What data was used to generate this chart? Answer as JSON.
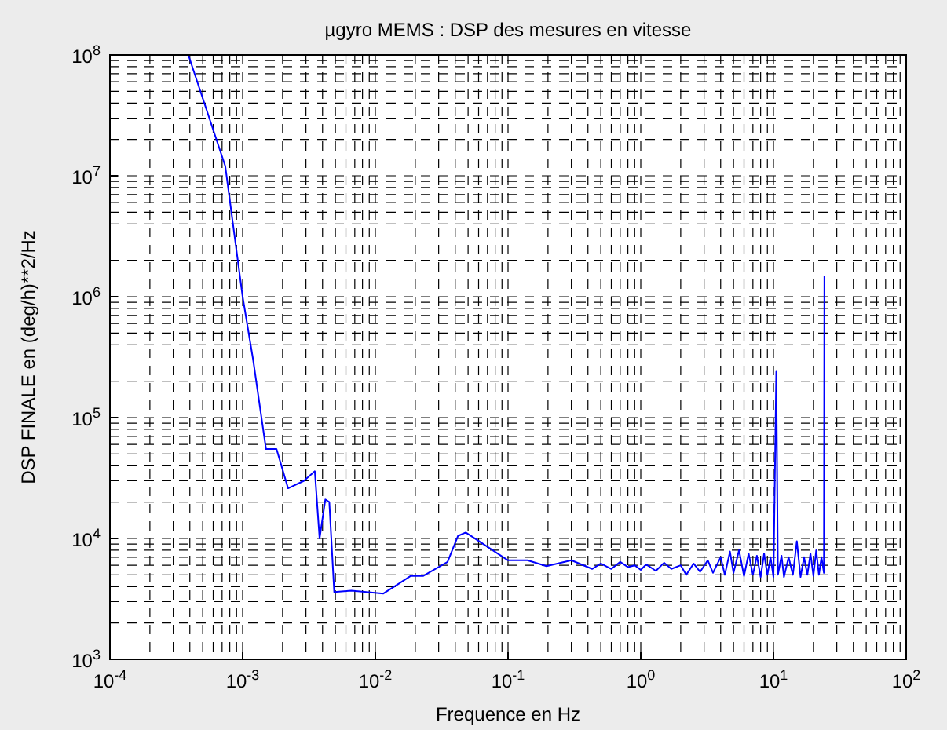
{
  "chart_data": {
    "type": "line",
    "title": "µgyro MEMS : DSP des mesures en vitesse",
    "xlabel": "Frequence en Hz",
    "ylabel": "DSP FINALE en (deg/h)**2/Hz",
    "log": "xy",
    "grid": true,
    "line_style": "solid",
    "xlim": [
      0.0001,
      100
    ],
    "ylim": [
      1000,
      100000000
    ],
    "xticks": [
      {
        "value": 0.0001,
        "label": "10$^{-4}$"
      },
      {
        "value": 0.001,
        "label": "10$^{-3}$"
      },
      {
        "value": 0.01,
        "label": "10$^{-2}$"
      },
      {
        "value": 0.1,
        "label": "10$^{-1}$"
      },
      {
        "value": 1,
        "label": "10$^{0}$"
      },
      {
        "value": 10,
        "label": "10$^{1}$"
      },
      {
        "value": 100,
        "label": "10$^{2}$"
      }
    ],
    "yticks": [
      {
        "value": 1000,
        "label": "10$^{3}$"
      },
      {
        "value": 10000,
        "label": "10$^{4}$"
      },
      {
        "value": 100000,
        "label": "10$^{5}$"
      },
      {
        "value": 1000000,
        "label": "10$^{6}$"
      },
      {
        "value": 10000000,
        "label": "10$^{7}$"
      },
      {
        "value": 100000000,
        "label": "10$^{8}$"
      }
    ],
    "series": [
      {
        "color": "#0000ff",
        "x": [
          0.00039,
          0.00074,
          0.001,
          0.0012,
          0.0015,
          0.0018,
          0.0022,
          0.0029,
          0.0035,
          0.0038,
          0.0042,
          0.0045,
          0.0049,
          0.0066,
          0.0115,
          0.0185,
          0.023,
          0.035,
          0.042,
          0.048,
          0.1,
          0.14,
          0.195,
          0.3,
          0.43,
          0.5,
          0.6,
          0.7,
          0.8,
          0.9,
          1.0,
          1.1,
          1.3,
          1.5,
          1.7,
          2.0,
          2.2,
          2.5,
          2.8,
          3.2,
          3.5,
          4.0,
          4.3,
          4.7,
          5.0,
          5.5,
          6.0,
          6.5,
          7.0,
          7.5,
          8.0,
          8.5,
          9.0,
          9.5,
          10.0,
          10.5,
          10.8,
          11.5,
          12,
          13,
          14,
          15,
          16,
          17,
          18,
          19,
          20,
          21,
          22,
          23,
          24,
          24.2
        ],
        "values": [
          100000000,
          12000000,
          1000000,
          300000,
          55000,
          55000,
          26000,
          30000,
          36000,
          10000,
          21000,
          20000,
          3600,
          3700,
          3500,
          4900,
          4900,
          6400,
          10500,
          11200,
          6600,
          6600,
          5900,
          6600,
          5600,
          6200,
          5600,
          6400,
          5800,
          6000,
          5500,
          6100,
          5400,
          6300,
          5600,
          6000,
          5000,
          6200,
          5300,
          6600,
          5200,
          7000,
          5000,
          7800,
          5200,
          8000,
          4900,
          7500,
          5000,
          7200,
          4800,
          7500,
          5000,
          7000,
          4800,
          240000,
          5000,
          7200,
          4800,
          7000,
          5000,
          9500,
          4800,
          7000,
          5000,
          7500,
          4900,
          8000,
          5000,
          7000,
          5200,
          1500000
        ]
      }
    ]
  }
}
